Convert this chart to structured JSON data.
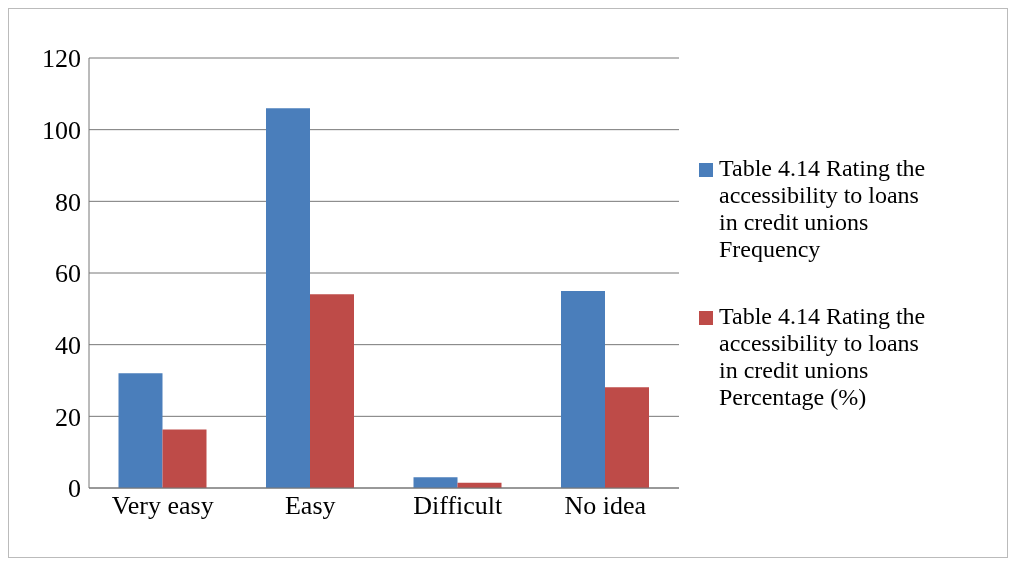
{
  "chart_data": {
    "type": "bar",
    "categories": [
      "Very easy",
      "Easy",
      "Difficult",
      "No idea"
    ],
    "series": [
      {
        "name": "Table 4.14 Rating the accessibility to loans in credit unions Frequency",
        "color": "#4a7ebb",
        "values": [
          32,
          106,
          3,
          55
        ]
      },
      {
        "name": "Table 4.14 Rating the accessibility to loans in credit unions Percentage (%)",
        "color": "#be4b48",
        "values": [
          16.3,
          54.1,
          1.5,
          28.1
        ]
      }
    ],
    "ylim": [
      0,
      120
    ],
    "yticks": [
      0,
      20,
      40,
      60,
      80,
      100,
      120
    ],
    "grid": "y",
    "legend": "right"
  }
}
